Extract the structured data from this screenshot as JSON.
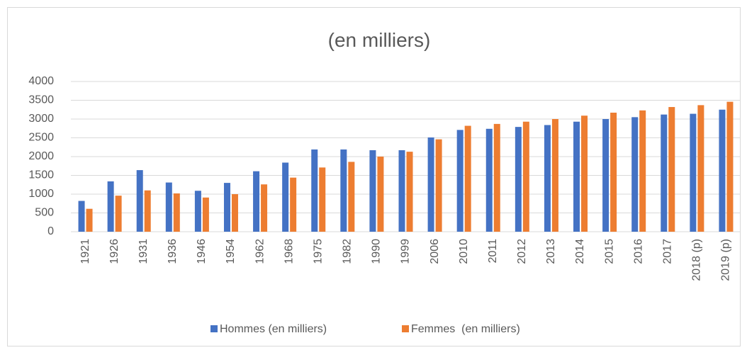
{
  "chart_data": {
    "type": "bar",
    "title": "(en milliers)",
    "categories": [
      "1921",
      "1926",
      "1931",
      "1936",
      "1946",
      "1954",
      "1962",
      "1968",
      "1975",
      "1982",
      "1990",
      "1999",
      "2006",
      "2010",
      "2011",
      "2012",
      "2013",
      "2014",
      "2015",
      "2016",
      "2017",
      "2018 (p)",
      "2019 (p)"
    ],
    "series": [
      {
        "name": "Hommes (en milliers)",
        "color": "#4472c4",
        "values": [
          820,
          1340,
          1640,
          1310,
          1090,
          1300,
          1610,
          1840,
          2190,
          2190,
          2170,
          2170,
          2510,
          2710,
          2740,
          2790,
          2840,
          2930,
          3000,
          3050,
          3120,
          3140,
          3250
        ]
      },
      {
        "name": "Femmes  (en milliers)",
        "color": "#ed7d31",
        "values": [
          610,
          960,
          1100,
          1020,
          910,
          1000,
          1260,
          1440,
          1710,
          1860,
          2000,
          2130,
          2460,
          2820,
          2870,
          2930,
          3000,
          3090,
          3170,
          3230,
          3320,
          3370,
          3460
        ]
      }
    ],
    "ylim": [
      0,
      4000
    ],
    "yticks": [
      0,
      500,
      1000,
      1500,
      2000,
      2500,
      3000,
      3500,
      4000
    ],
    "grid": true,
    "legend": "bottom"
  }
}
